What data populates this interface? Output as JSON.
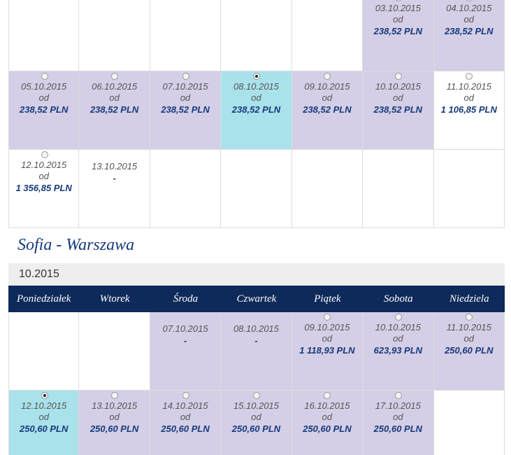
{
  "outbound": {
    "weeks": [
      [
        null,
        null,
        null,
        null,
        null,
        {
          "date": "03.10.2015",
          "od": "od",
          "price": "238,52 PLN",
          "state": "available",
          "radio": true,
          "checked": false
        },
        {
          "date": "04.10.2015",
          "od": "od",
          "price": "238,52 PLN",
          "state": "available",
          "radio": true,
          "checked": false
        }
      ],
      [
        {
          "date": "05.10.2015",
          "od": "od",
          "price": "238,52 PLN",
          "state": "available",
          "radio": true,
          "checked": false
        },
        {
          "date": "06.10.2015",
          "od": "od",
          "price": "238,52 PLN",
          "state": "available",
          "radio": true,
          "checked": false
        },
        {
          "date": "07.10.2015",
          "od": "od",
          "price": "238,52 PLN",
          "state": "available",
          "radio": true,
          "checked": false
        },
        {
          "date": "08.10.2015",
          "od": "od",
          "price": "238,52 PLN",
          "state": "selected",
          "radio": true,
          "checked": true
        },
        {
          "date": "09.10.2015",
          "od": "od",
          "price": "238,52 PLN",
          "state": "available",
          "radio": true,
          "checked": false
        },
        {
          "date": "10.10.2015",
          "od": "od",
          "price": "238,52 PLN",
          "state": "available",
          "radio": true,
          "checked": false
        },
        {
          "date": "11.10.2015",
          "od": "od",
          "price": "1 106,85 PLN",
          "state": "plain",
          "radio": true,
          "checked": false
        }
      ],
      [
        {
          "date": "12.10.2015",
          "od": "od",
          "price": "1 356,85 PLN",
          "state": "plain",
          "radio": true,
          "checked": false
        },
        {
          "date": "13.10.2015",
          "price": "-",
          "state": "plain",
          "radio": false,
          "checked": false
        },
        null,
        null,
        null,
        null,
        null
      ]
    ]
  },
  "return": {
    "title": "Sofia - Warszawa",
    "month": "10.2015",
    "weekdays": [
      "Poniedziałek",
      "Wtorek",
      "Środa",
      "Czwartek",
      "Piątek",
      "Sobota",
      "Niedziela"
    ],
    "weeks": [
      [
        null,
        null,
        {
          "date": "07.10.2015",
          "price": "-",
          "state": "available",
          "radio": false,
          "checked": false
        },
        {
          "date": "08.10.2015",
          "price": "-",
          "state": "available",
          "radio": false,
          "checked": false
        },
        {
          "date": "09.10.2015",
          "od": "od",
          "price": "1 118,93 PLN",
          "state": "available",
          "radio": true,
          "checked": false
        },
        {
          "date": "10.10.2015",
          "od": "od",
          "price": "623,93 PLN",
          "state": "available",
          "radio": true,
          "checked": false
        },
        {
          "date": "11.10.2015",
          "od": "od",
          "price": "250,60 PLN",
          "state": "available",
          "radio": true,
          "checked": false
        }
      ],
      [
        {
          "date": "12.10.2015",
          "od": "od",
          "price": "250,60 PLN",
          "state": "selected",
          "radio": true,
          "checked": true
        },
        {
          "date": "13.10.2015",
          "od": "od",
          "price": "250,60 PLN",
          "state": "available",
          "radio": true,
          "checked": false
        },
        {
          "date": "14.10.2015",
          "od": "od",
          "price": "250,60 PLN",
          "state": "available",
          "radio": true,
          "checked": false
        },
        {
          "date": "15.10.2015",
          "od": "od",
          "price": "250,60 PLN",
          "state": "available",
          "radio": true,
          "checked": false
        },
        {
          "date": "16.10.2015",
          "od": "od",
          "price": "250,60 PLN",
          "state": "available",
          "radio": true,
          "checked": false
        },
        {
          "date": "17.10.2015",
          "od": "od",
          "price": "250,60 PLN",
          "state": "available",
          "radio": true,
          "checked": false
        },
        null
      ]
    ]
  }
}
